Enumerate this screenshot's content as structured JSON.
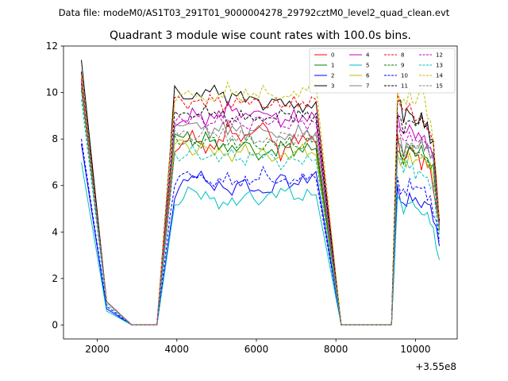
{
  "chart_data": {
    "type": "line",
    "suptitle": "Data file: modeM0/AS1T03_291T01_9000004278_29792cztM0_level2_quad_clean.evt",
    "title": "Quadrant 3 module wise count rates with 100.0s bins.",
    "xlabel": "",
    "ylabel": "",
    "x_offset_label": "+3.55e8",
    "xlim": [
      1150,
      11050
    ],
    "ylim": [
      -0.6,
      12.0
    ],
    "xticks": [
      2000,
      4000,
      6000,
      8000,
      10000
    ],
    "yticks": [
      0,
      2,
      4,
      6,
      8,
      10,
      12
    ],
    "grid": false,
    "legend_position": "top-right",
    "segments": [
      {
        "start": 1600,
        "end": 3500
      },
      {
        "start": 3500,
        "end": 7500
      },
      {
        "start": 7500,
        "end": 9400
      },
      {
        "start": 9400,
        "end": 10600
      }
    ],
    "series": [
      {
        "name": "0",
        "color": "#ff0000",
        "dashed": false,
        "seg0": [
          10.8,
          1.0,
          0,
          0
        ],
        "seg1": [
          0,
          7.6,
          8.3,
          7.5,
          8.4,
          7.9,
          8.6,
          7.2,
          8.1,
          7.8
        ],
        "seg2": [
          8.1,
          0,
          0,
          0
        ],
        "seg3": [
          0,
          7.9,
          6.8,
          7.5,
          7.3,
          6.9,
          7.2,
          6.1,
          4.2
        ]
      },
      {
        "name": "1",
        "color": "#008000",
        "dashed": false,
        "seg0": [
          10.2,
          1.0,
          0,
          0
        ],
        "seg1": [
          0,
          8.3,
          7.9,
          8.1,
          7.6,
          7.9,
          7.2,
          7.7,
          7.4,
          7.6
        ],
        "seg2": [
          7.9,
          0,
          0,
          0
        ],
        "seg3": [
          0,
          7.7,
          7.0,
          7.6,
          7.2,
          7.5,
          7.0,
          6.8,
          4.2
        ]
      },
      {
        "name": "2",
        "color": "#0000ff",
        "dashed": false,
        "seg0": [
          7.8,
          0.7,
          0,
          0
        ],
        "seg1": [
          0,
          5.5,
          6.5,
          6.1,
          5.8,
          6.2,
          5.6,
          6.4,
          6.0,
          6.6
        ],
        "seg2": [
          6.5,
          0,
          0,
          0
        ],
        "seg3": [
          0,
          6.0,
          5.2,
          5.6,
          5.4,
          5.0,
          5.2,
          4.5,
          3.4
        ]
      },
      {
        "name": "3",
        "color": "#000000",
        "dashed": false,
        "seg0": [
          11.4,
          1.0,
          0,
          0
        ],
        "seg1": [
          0,
          10.0,
          9.6,
          10.1,
          9.7,
          9.9,
          9.5,
          9.8,
          9.4,
          9.6
        ],
        "seg2": [
          9.5,
          0,
          0,
          0
        ],
        "seg3": [
          0,
          9.8,
          9.0,
          9.4,
          8.8,
          9.1,
          8.5,
          7.6,
          4.5
        ]
      },
      {
        "name": "4",
        "color": "#c000c0",
        "dashed": false,
        "seg0": [
          10.5,
          1.0,
          0,
          0
        ],
        "seg1": [
          0,
          8.6,
          9.2,
          8.8,
          9.3,
          8.9,
          9.1,
          8.7,
          9.0,
          8.9
        ],
        "seg2": [
          8.8,
          0,
          0,
          0
        ],
        "seg3": [
          0,
          8.8,
          8.0,
          8.5,
          8.1,
          8.3,
          7.9,
          7.4,
          4.3
        ]
      },
      {
        "name": "5",
        "color": "#00bfbf",
        "dashed": false,
        "seg0": [
          7.0,
          0.6,
          0,
          0
        ],
        "seg1": [
          0,
          5.2,
          5.9,
          5.5,
          5.2,
          5.6,
          5.3,
          5.8,
          5.4,
          5.6
        ],
        "seg2": [
          5.5,
          0,
          0,
          0
        ],
        "seg3": [
          0,
          5.6,
          4.8,
          5.2,
          5.0,
          4.7,
          4.8,
          4.2,
          2.8
        ]
      },
      {
        "name": "6",
        "color": "#bfbf00",
        "dashed": false,
        "seg0": [
          10.3,
          1.0,
          0,
          0
        ],
        "seg1": [
          0,
          8.0,
          7.5,
          7.7,
          7.3,
          7.6,
          7.4,
          7.1,
          7.5,
          7.3
        ],
        "seg2": [
          7.4,
          0,
          0,
          0
        ],
        "seg3": [
          0,
          7.4,
          7.0,
          7.2,
          6.9,
          7.1,
          6.8,
          6.4,
          4.0
        ]
      },
      {
        "name": "7",
        "color": "#808080",
        "dashed": false,
        "seg0": [
          10.4,
          1.0,
          0,
          0
        ],
        "seg1": [
          0,
          8.4,
          8.6,
          8.2,
          8.5,
          8.3,
          8.6,
          8.1,
          8.4,
          8.3
        ],
        "seg2": [
          8.5,
          0,
          0,
          0
        ],
        "seg3": [
          0,
          8.2,
          7.6,
          8.0,
          7.7,
          7.9,
          7.5,
          7.1,
          4.2
        ]
      },
      {
        "name": "8",
        "color": "#ff0000",
        "dashed": true,
        "seg0": [
          10.6,
          1.0,
          0,
          0
        ],
        "seg1": [
          0,
          9.8,
          9.5,
          9.7,
          9.3,
          9.6,
          9.4,
          9.5,
          9.6,
          9.7
        ],
        "seg2": [
          9.8,
          0,
          0,
          0
        ],
        "seg3": [
          0,
          9.7,
          9.1,
          9.5,
          8.9,
          9.0,
          8.6,
          7.9,
          4.5
        ]
      },
      {
        "name": "9",
        "color": "#008000",
        "dashed": true,
        "seg0": [
          10.1,
          1.0,
          0,
          0
        ],
        "seg1": [
          0,
          8.1,
          7.8,
          8.0,
          7.7,
          7.9,
          7.6,
          7.8,
          7.7,
          7.9
        ],
        "seg2": [
          8.0,
          0,
          0,
          0
        ],
        "seg3": [
          0,
          7.8,
          7.2,
          7.6,
          7.3,
          7.4,
          7.1,
          6.9,
          4.1
        ]
      },
      {
        "name": "10",
        "color": "#0000ff",
        "dashed": true,
        "seg0": [
          8.0,
          0.8,
          0,
          0
        ],
        "seg1": [
          0,
          6.3,
          6.6,
          6.2,
          6.4,
          6.1,
          6.5,
          6.0,
          6.2,
          6.3
        ],
        "seg2": [
          6.3,
          0,
          0,
          0
        ],
        "seg3": [
          0,
          6.3,
          5.6,
          6.0,
          5.7,
          5.8,
          5.5,
          5.0,
          3.6
        ]
      },
      {
        "name": "11",
        "color": "#000000",
        "dashed": true,
        "seg0": [
          10.9,
          1.0,
          0,
          0
        ],
        "seg1": [
          0,
          9.0,
          8.9,
          9.2,
          8.8,
          9.1,
          8.9,
          9.2,
          9.0,
          9.1
        ],
        "seg2": [
          9.0,
          0,
          0,
          0
        ],
        "seg3": [
          0,
          9.3,
          8.5,
          9.0,
          8.6,
          8.8,
          8.3,
          7.7,
          4.4
        ]
      },
      {
        "name": "12",
        "color": "#c000c0",
        "dashed": true,
        "seg0": [
          10.4,
          1.0,
          0,
          0
        ],
        "seg1": [
          0,
          8.7,
          8.9,
          8.6,
          8.8,
          8.5,
          8.9,
          8.6,
          8.8,
          8.7
        ],
        "seg2": [
          8.7,
          0,
          0,
          0
        ],
        "seg3": [
          0,
          8.6,
          7.9,
          8.3,
          8.0,
          8.1,
          7.8,
          7.3,
          4.3
        ]
      },
      {
        "name": "13",
        "color": "#00bfbf",
        "dashed": true,
        "seg0": [
          9.7,
          0.9,
          0,
          0
        ],
        "seg1": [
          0,
          7.2,
          7.5,
          7.1,
          7.3,
          7.0,
          7.4,
          6.9,
          7.2,
          7.1
        ],
        "seg2": [
          7.2,
          0,
          0,
          0
        ],
        "seg3": [
          0,
          7.1,
          6.6,
          6.9,
          6.5,
          6.7,
          6.4,
          6.0,
          3.9
        ]
      },
      {
        "name": "14",
        "color": "#bfbf00",
        "dashed": true,
        "seg0": [
          10.7,
          1.0,
          0,
          0
        ],
        "seg1": [
          0,
          9.9,
          10.1,
          9.7,
          10.2,
          9.8,
          10.0,
          9.6,
          9.9,
          10.3
        ],
        "seg2": [
          10.1,
          0,
          0,
          0
        ],
        "seg3": [
          0,
          10.0,
          9.4,
          9.8,
          9.3,
          10.2,
          9.1,
          8.2,
          4.6
        ]
      },
      {
        "name": "15",
        "color": "#808080",
        "dashed": true,
        "seg0": [
          10.3,
          1.0,
          0,
          0
        ],
        "seg1": [
          0,
          8.3,
          8.0,
          8.4,
          8.1,
          8.3,
          7.9,
          8.2,
          8.0,
          8.2
        ],
        "seg2": [
          8.2,
          0,
          0,
          0
        ],
        "seg3": [
          0,
          8.1,
          7.5,
          7.9,
          7.6,
          7.7,
          7.4,
          7.0,
          4.1
        ]
      }
    ]
  }
}
